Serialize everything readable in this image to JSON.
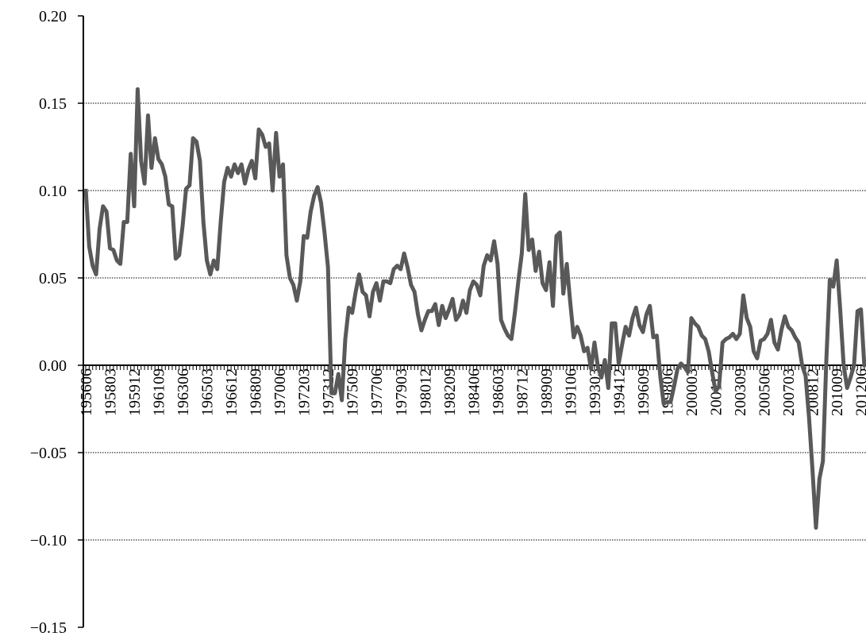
{
  "chart_data": {
    "type": "line",
    "color": "#595959",
    "grid": true,
    "ylim": [
      -0.15,
      0.2
    ],
    "yticks": [
      {
        "value": -0.15,
        "label": "−0.15"
      },
      {
        "value": -0.1,
        "label": "−0.10"
      },
      {
        "value": -0.05,
        "label": "−0.05"
      },
      {
        "value": 0,
        "label": "0.00"
      },
      {
        "value": 0.05,
        "label": "0.05"
      },
      {
        "value": 0.1,
        "label": "0.10"
      },
      {
        "value": 0.15,
        "label": "0.15"
      },
      {
        "value": 0.2,
        "label": "0.20"
      }
    ],
    "categories": [
      "195606",
      null,
      null,
      null,
      null,
      null,
      null,
      "195803",
      null,
      null,
      null,
      null,
      null,
      null,
      "195912",
      null,
      null,
      null,
      null,
      null,
      null,
      "196109",
      null,
      null,
      null,
      null,
      null,
      null,
      "196306",
      null,
      null,
      null,
      null,
      null,
      null,
      "196503",
      null,
      null,
      null,
      null,
      null,
      null,
      "196612",
      null,
      null,
      null,
      null,
      null,
      null,
      "196809",
      null,
      null,
      null,
      null,
      null,
      null,
      "197006",
      null,
      null,
      null,
      null,
      null,
      null,
      "197203",
      null,
      null,
      null,
      null,
      null,
      null,
      "197312",
      null,
      null,
      null,
      null,
      null,
      null,
      "197509",
      null,
      null,
      null,
      null,
      null,
      null,
      "197706",
      null,
      null,
      null,
      null,
      null,
      null,
      "197903",
      null,
      null,
      null,
      null,
      null,
      null,
      "198012",
      null,
      null,
      null,
      null,
      null,
      null,
      "198209",
      null,
      null,
      null,
      null,
      null,
      null,
      "198406",
      null,
      null,
      null,
      null,
      null,
      null,
      "198603",
      null,
      null,
      null,
      null,
      null,
      null,
      "198712",
      null,
      null,
      null,
      null,
      null,
      null,
      "198909",
      null,
      null,
      null,
      null,
      null,
      null,
      "199106",
      null,
      null,
      null,
      null,
      null,
      null,
      "199303",
      null,
      null,
      null,
      null,
      null,
      null,
      "199412",
      null,
      null,
      null,
      null,
      null,
      null,
      "199609",
      null,
      null,
      null,
      null,
      null,
      null,
      "199806",
      null,
      null,
      null,
      null,
      null,
      null,
      "200003",
      null,
      null,
      null,
      null,
      null,
      null,
      "200112",
      null,
      null,
      null,
      null,
      null,
      null,
      "200309",
      null,
      null,
      null,
      null,
      null,
      null,
      "200506",
      null,
      null,
      null,
      null,
      null,
      null,
      "200703",
      null,
      null,
      null,
      null,
      null,
      null,
      "200812",
      null,
      null,
      null,
      null,
      null,
      null,
      "201009",
      null,
      null,
      null,
      null,
      null,
      null,
      "201206",
      null
    ],
    "values": [
      0.101,
      0.068,
      0.057,
      0.052,
      0.078,
      0.091,
      0.088,
      0.067,
      0.066,
      0.06,
      0.058,
      0.082,
      0.082,
      0.121,
      0.091,
      0.158,
      0.117,
      0.104,
      0.143,
      0.113,
      0.13,
      0.118,
      0.115,
      0.108,
      0.092,
      0.091,
      0.061,
      0.063,
      0.08,
      0.101,
      0.103,
      0.13,
      0.128,
      0.117,
      0.082,
      0.06,
      0.052,
      0.06,
      0.055,
      0.082,
      0.105,
      0.113,
      0.108,
      0.115,
      0.11,
      0.115,
      0.104,
      0.112,
      0.117,
      0.107,
      0.135,
      0.132,
      0.125,
      0.127,
      0.1,
      0.133,
      0.108,
      0.115,
      0.063,
      0.05,
      0.046,
      0.037,
      0.048,
      0.074,
      0.073,
      0.088,
      0.097,
      0.102,
      0.093,
      0.076,
      0.056,
      -0.016,
      -0.016,
      -0.005,
      -0.02,
      0.015,
      0.033,
      0.03,
      0.042,
      0.052,
      0.042,
      0.04,
      0.028,
      0.042,
      0.047,
      0.037,
      0.048,
      0.048,
      0.047,
      0.055,
      0.057,
      0.055,
      0.064,
      0.056,
      0.046,
      0.042,
      0.029,
      0.02,
      0.026,
      0.031,
      0.031,
      0.035,
      0.023,
      0.034,
      0.027,
      0.032,
      0.038,
      0.026,
      0.029,
      0.037,
      0.03,
      0.043,
      0.048,
      0.046,
      0.04,
      0.057,
      0.063,
      0.06,
      0.071,
      0.058,
      0.026,
      0.021,
      0.017,
      0.015,
      0.03,
      0.048,
      0.064,
      0.098,
      0.066,
      0.072,
      0.054,
      0.065,
      0.047,
      0.043,
      0.059,
      0.034,
      0.074,
      0.076,
      0.041,
      0.058,
      0.036,
      0.016,
      0.022,
      0.017,
      0.008,
      0.01,
      -0.002,
      0.013,
      -0.001,
      -0.007,
      0.003,
      -0.013,
      0.024,
      0.024,
      0.001,
      0.012,
      0.022,
      0.017,
      0.027,
      0.033,
      0.023,
      0.019,
      0.029,
      0.034,
      0.016,
      0.017,
      -0.006,
      -0.022,
      -0.021,
      -0.021,
      -0.012,
      -0.002,
      0.001,
      -0.001,
      -0.004,
      0.027,
      0.024,
      0.022,
      0.017,
      0.015,
      0.008,
      -0.004,
      -0.015,
      -0.012,
      0.013,
      0.015,
      0.016,
      0.018,
      0.015,
      0.018,
      0.04,
      0.027,
      0.022,
      0.008,
      0.004,
      0.014,
      0.015,
      0.018,
      0.026,
      0.013,
      0.009,
      0.02,
      0.028,
      0.022,
      0.02,
      0.016,
      0.013,
      0.0,
      -0.006,
      -0.03,
      -0.06,
      -0.093,
      -0.065,
      -0.055,
      0.003,
      0.049,
      0.045,
      0.06,
      0.032,
      0.0,
      -0.013,
      -0.007,
      0.0,
      0.031,
      0.032,
      -0.001
    ]
  }
}
